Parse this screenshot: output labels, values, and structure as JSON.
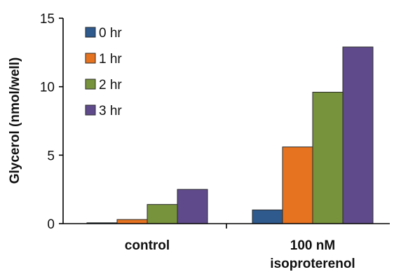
{
  "chart_data": {
    "type": "bar",
    "title": "",
    "xlabel": "",
    "ylabel": "Glycerol (nmol/well)",
    "ylim": [
      0,
      15
    ],
    "yticks": [
      0,
      5,
      10,
      15
    ],
    "grid": false,
    "legend_position": "top-left",
    "categories": [
      [
        "control"
      ],
      [
        "100 nM",
        "isoproterenol"
      ]
    ],
    "series": [
      {
        "name": "0 hr",
        "color": "#2e5a8e",
        "values": [
          0.05,
          1.0
        ]
      },
      {
        "name": "1 hr",
        "color": "#e6731f",
        "values": [
          0.3,
          5.6
        ]
      },
      {
        "name": "2 hr",
        "color": "#77933c",
        "values": [
          1.4,
          9.6
        ]
      },
      {
        "name": "3 hr",
        "color": "#5f4b8b",
        "values": [
          2.5,
          12.9
        ]
      }
    ]
  }
}
